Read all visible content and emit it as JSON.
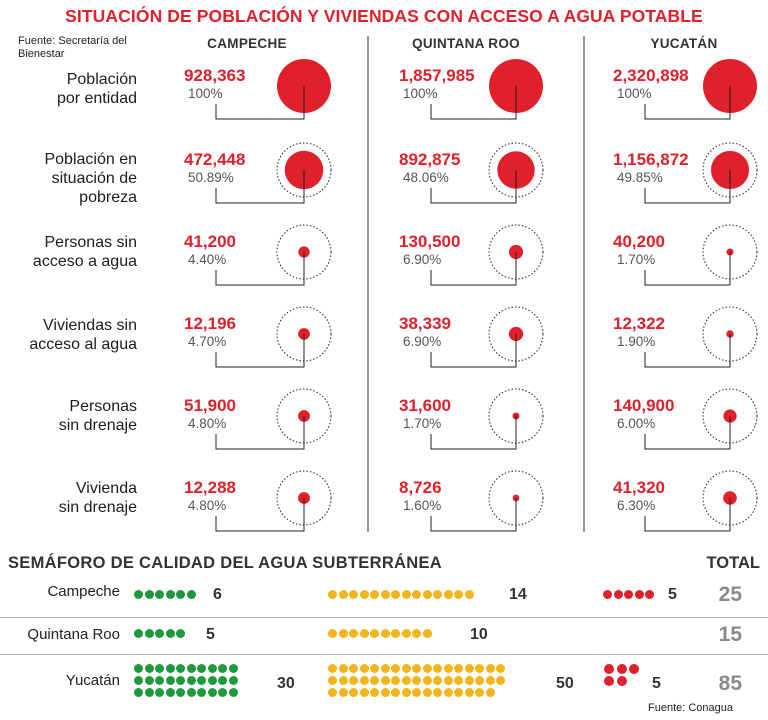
{
  "title": "SITUACIÓN DE POBLACIÓN Y VIVIENDAS CON ACCESO A AGUA POTABLE",
  "source_top": "Fuente: Secretaría del Bienestar",
  "columns": [
    "CAMPECHE",
    "QUINTANA ROO",
    "YUCATÁN"
  ],
  "rows": [
    {
      "label": "Población por entidad",
      "cells": [
        {
          "value": "928,363",
          "pct": "100%",
          "share": 1.0
        },
        {
          "value": "1,857,985",
          "pct": "100%",
          "share": 1.0
        },
        {
          "value": "2,320,898",
          "pct": "100%",
          "share": 1.0
        }
      ]
    },
    {
      "label": "Población en situación de pobreza",
      "cells": [
        {
          "value": "472,448",
          "pct": "50.89%",
          "share": 0.5089
        },
        {
          "value": "892,875",
          "pct": "48.06%",
          "share": 0.4806
        },
        {
          "value": "1,156,872",
          "pct": "49.85%",
          "share": 0.4985
        }
      ]
    },
    {
      "label": "Personas sin acceso a agua",
      "cells": [
        {
          "value": "41,200",
          "pct": "4.40%",
          "share": 0.044
        },
        {
          "value": "130,500",
          "pct": "6.90%",
          "share": 0.069
        },
        {
          "value": "40,200",
          "pct": "1.70%",
          "share": 0.017
        }
      ]
    },
    {
      "label": "Viviendas sin acceso al agua",
      "cells": [
        {
          "value": "12,196",
          "pct": "4.70%",
          "share": 0.047
        },
        {
          "value": "38,339",
          "pct": "6.90%",
          "share": 0.069
        },
        {
          "value": "12,322",
          "pct": "1.90%",
          "share": 0.019
        }
      ]
    },
    {
      "label": "Personas sin drenaje",
      "cells": [
        {
          "value": "51,900",
          "pct": "4.80%",
          "share": 0.048
        },
        {
          "value": "31,600",
          "pct": "1.70%",
          "share": 0.017
        },
        {
          "value": "140,900",
          "pct": "6.00%",
          "share": 0.06
        }
      ]
    },
    {
      "label": "Vivienda sin drenaje",
      "cells": [
        {
          "value": "12,288",
          "pct": "4.80%",
          "share": 0.048
        },
        {
          "value": "8,726",
          "pct": "1.60%",
          "share": 0.016
        },
        {
          "value": "41,320",
          "pct": "6.30%",
          "share": 0.063
        }
      ]
    }
  ],
  "semaforo": {
    "title": "SEMÁFORO DE CALIDAD DEL AGUA SUBTERRÁNEA",
    "total_label": "TOTAL",
    "rows": [
      {
        "state": "Campeche",
        "green": "6",
        "yellow": "14",
        "red": "5",
        "total": "25"
      },
      {
        "state": "Quintana Roo",
        "green": "5",
        "yellow": "10",
        "red": "",
        "total": "15"
      },
      {
        "state": "Yucatán",
        "green": "30",
        "yellow": "50",
        "red": "5",
        "total": "85"
      }
    ],
    "colors": {
      "green": "#1e9a3c",
      "yellow": "#f3b51b",
      "red": "#e0202a"
    }
  },
  "source_bottom": "Fuente: Conagua",
  "accent_color": "#e0202a"
}
